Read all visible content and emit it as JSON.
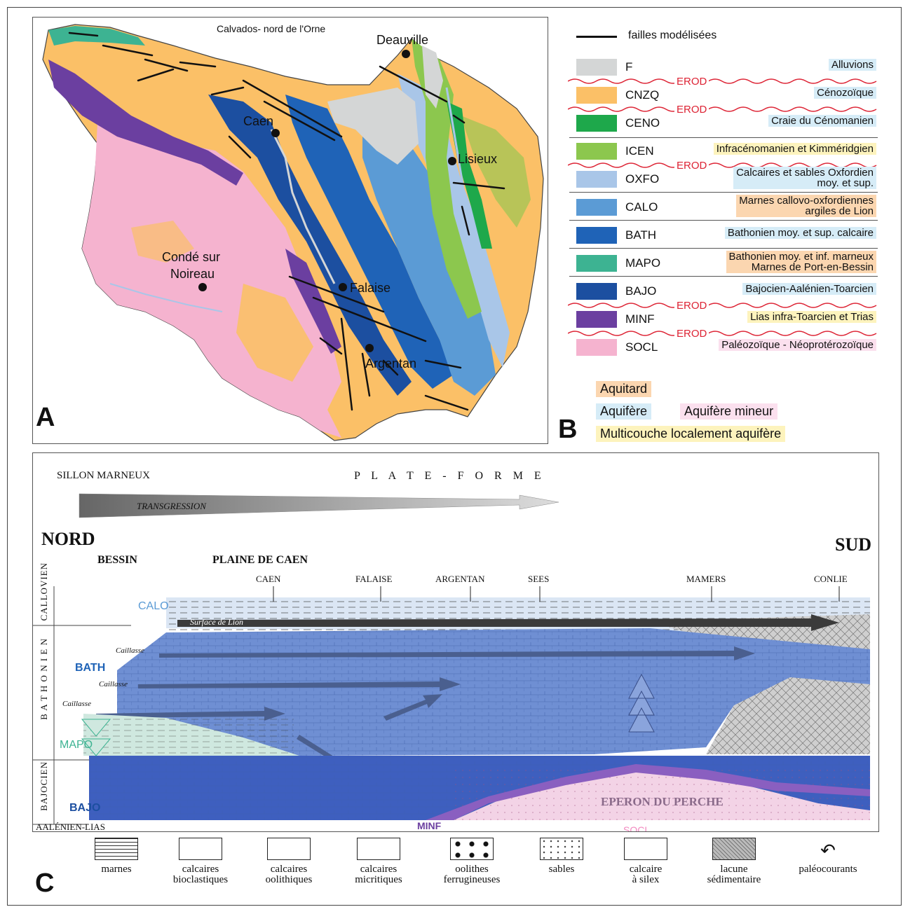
{
  "panel_a": {
    "letter": "A",
    "title": "Calvados- nord de l'Orne",
    "cities": [
      "Deauville",
      "Caen",
      "Lisieux",
      "Condé sur",
      "Noireau",
      "Falaise",
      "Argentan"
    ]
  },
  "panel_b": {
    "letter": "B",
    "faults_label": "failles modélisées",
    "erod": "EROD",
    "units": [
      {
        "code": "F",
        "desc": "Alluvions",
        "color": "#d4d6d6",
        "hl": "#d6ecf7"
      },
      {
        "code": "CNZQ",
        "desc": "Cénozoïque",
        "color": "#fbc067",
        "hl": "#d6ecf7"
      },
      {
        "code": "CENO",
        "desc": "Craie du Cénomanien",
        "color": "#1ea84b",
        "hl": "#d6ecf7"
      },
      {
        "code": "ICEN",
        "desc": "Infracénomanien et Kimméridgien",
        "color": "#8cc74e",
        "hl": "#fdf3bd"
      },
      {
        "code": "OXFO",
        "desc": "Calcaires et sables Oxfordien",
        "desc2": "moy. et sup.",
        "color": "#a9c6e8",
        "hl": "#d6ecf7"
      },
      {
        "code": "CALO",
        "desc": "Marnes callovo-oxfordiennes",
        "desc2": "argiles de Lion",
        "color": "#5b9bd5",
        "hl": "#fbd6b0"
      },
      {
        "code": "BATH",
        "desc": "Bathonien moy. et sup. calcaire",
        "color": "#1f63b7",
        "hl": "#d6ecf7"
      },
      {
        "code": "MAPO",
        "desc": "Bathonien moy. et inf. marneux",
        "desc2": "Marnes de Port-en-Bessin",
        "color": "#3db392",
        "hl": "#fbd6b0"
      },
      {
        "code": "BAJO",
        "desc": "Bajocien-Aalénien-Toarcien",
        "color": "#1c4fa0",
        "hl": "#d6ecf7"
      },
      {
        "code": "MINF",
        "desc": "Lias infra-Toarcien  et Trias",
        "color": "#6b3fa0",
        "hl": "#fdf3bd"
      },
      {
        "code": "SOCL",
        "desc": "Paléozoïque - Néoprotérozoïque",
        "color": "#f5b3cf",
        "hl": "#fbe0ee"
      }
    ],
    "hydro": {
      "aquitard": "Aquitard",
      "aquifere": "Aquifère",
      "aquifere_mineur": "Aquifère mineur",
      "multicouche": "Multicouche localement aquifère"
    }
  },
  "panel_c": {
    "letter": "C",
    "sillon": "SILLON MARNEUX",
    "plateforme": "P L A T E - F O R M E",
    "transgression": "TRANSGRESSION",
    "nord": "NORD",
    "sud": "SUD",
    "bessin": "BESSIN",
    "plaine": "PLAINE DE CAEN",
    "towns": [
      "CAEN",
      "FALAISE",
      "ARGENTAN",
      "SEES",
      "MAMERS",
      "CONLIE"
    ],
    "stages": {
      "callovien": "CALLOVIEN",
      "bathonien": "B A T H O N I E N",
      "bajocien": "BAJOCIEN",
      "aalenien": "AALÉNIEN-LIAS"
    },
    "surface_lion": "Surface de Lion",
    "caillasse": "Caillasse",
    "eperon": "EPERON DU PERCHE",
    "layer_labels": {
      "calo": "CALO",
      "bath": "BATH",
      "mapo": "MAPO",
      "bajo": "BAJO",
      "minf": "MINF",
      "socl": "SOCL"
    },
    "key": [
      {
        "l1": "marnes",
        "l2": ""
      },
      {
        "l1": "calcaires",
        "l2": "bioclastiques"
      },
      {
        "l1": "calcaires",
        "l2": "oolithiques"
      },
      {
        "l1": "calcaires",
        "l2": "micritiques"
      },
      {
        "l1": "oolithes",
        "l2": "ferrugineuses"
      },
      {
        "l1": "sables",
        "l2": ""
      },
      {
        "l1": "calcaire",
        "l2": "à silex"
      },
      {
        "l1": "lacune",
        "l2": "sédimentaire"
      },
      {
        "l1": "paléocourants",
        "l2": ""
      }
    ]
  }
}
